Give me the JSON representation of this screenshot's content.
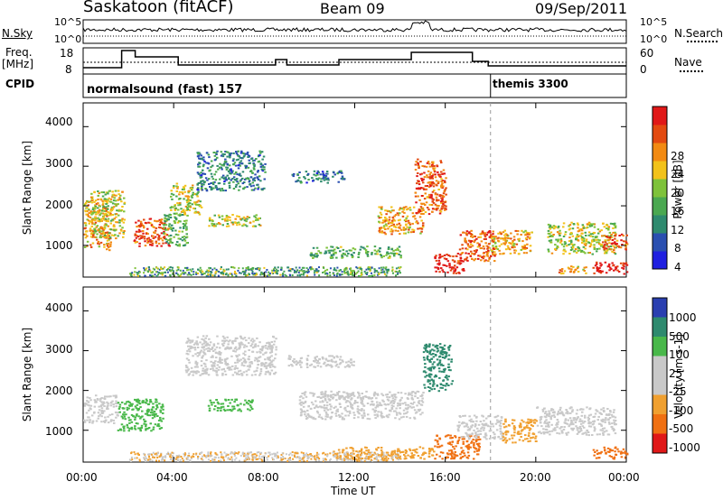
{
  "header": {
    "station": "Saskatoon (fitACF)",
    "beam": "Beam 09",
    "date": "09/Sep/2011"
  },
  "noise_panel": {
    "left_label": "N.Sky",
    "right_label": "N.Search",
    "left_ticks": [
      "10^5",
      "10^0"
    ],
    "right_ticks": [
      "10^5",
      "10^0"
    ]
  },
  "freq_panel": {
    "left_label_1": "Freq.",
    "left_label_2": "[MHz]",
    "right_label": "Nave",
    "left_ticks": [
      "18",
      "8"
    ],
    "right_ticks": [
      "60",
      "0"
    ]
  },
  "cpid_panel": {
    "label": "CPID",
    "modes": [
      {
        "text": "normalsound (fast) 157",
        "start_h": 0
      },
      {
        "text": "themis 3300",
        "start_h": 18
      }
    ]
  },
  "time_axis": {
    "label": "Time UT",
    "ticks": [
      "00:00",
      "04:00",
      "08:00",
      "12:00",
      "16:00",
      "20:00",
      "00:00"
    ]
  },
  "power_panel": {
    "ylabel": "Slant Range [km]",
    "yticks": [
      "4000",
      "3000",
      "2000",
      "1000"
    ],
    "colorbar_label": "Power [dB]",
    "colorbar_ticks": [
      "28",
      "24",
      "20",
      "16",
      "12",
      "8",
      "4"
    ],
    "colors": [
      "#1f1fe0",
      "#2a4fb0",
      "#2e8a6e",
      "#4aa850",
      "#7ec23a",
      "#f2c21a",
      "#f28a12",
      "#e34a10",
      "#e01818"
    ]
  },
  "velocity_panel": {
    "ylabel": "Slant Range [km]",
    "yticks": [
      "4000",
      "3000",
      "2000",
      "1000"
    ],
    "colorbar_label": "Velocity [m s-1]",
    "colorbar_ticks": [
      "1000",
      "500",
      "100",
      "25",
      "-25",
      "-100",
      "-500",
      "-1000"
    ],
    "colors": [
      "#2a3fb0",
      "#2e8a6e",
      "#49b84a",
      "#c9c9c9",
      "#c9c9c9",
      "#f0a030",
      "#f07012",
      "#e01818"
    ]
  },
  "chart_data": [
    {
      "type": "heatmap",
      "title": "Power",
      "xlabel": "Time UT",
      "ylabel": "Slant Range [km]",
      "xlim": [
        0,
        24
      ],
      "ylim": [
        200,
        4600
      ],
      "colorbar": {
        "label": "Power [dB]",
        "ticks": [
          4,
          8,
          12,
          16,
          20,
          24,
          28
        ]
      },
      "regions": [
        {
          "t0": 0.0,
          "t1": 1.2,
          "r0": 900,
          "r1": 2200,
          "level": 20
        },
        {
          "t0": 0.3,
          "t1": 1.8,
          "r0": 1200,
          "r1": 2400,
          "level": 16
        },
        {
          "t0": 2.2,
          "t1": 3.8,
          "r0": 1000,
          "r1": 1700,
          "level": 24
        },
        {
          "t0": 3.5,
          "t1": 4.6,
          "r0": 1000,
          "r1": 1800,
          "level": 12
        },
        {
          "t0": 3.8,
          "t1": 5.2,
          "r0": 1800,
          "r1": 2600,
          "level": 16
        },
        {
          "t0": 5.0,
          "t1": 8.0,
          "r0": 2400,
          "r1": 3400,
          "level": 8
        },
        {
          "t0": 5.5,
          "t1": 7.8,
          "r0": 1500,
          "r1": 1800,
          "level": 16
        },
        {
          "t0": 9.2,
          "t1": 11.5,
          "r0": 2600,
          "r1": 2900,
          "level": 8
        },
        {
          "t0": 10.0,
          "t1": 14.0,
          "r0": 700,
          "r1": 1000,
          "level": 12
        },
        {
          "t0": 13.0,
          "t1": 15.0,
          "r0": 1300,
          "r1": 2000,
          "level": 20
        },
        {
          "t0": 14.6,
          "t1": 16.0,
          "r0": 1800,
          "r1": 3200,
          "level": 24
        },
        {
          "t0": 15.5,
          "t1": 16.8,
          "r0": 300,
          "r1": 800,
          "level": 28
        },
        {
          "t0": 16.5,
          "t1": 18.2,
          "r0": 600,
          "r1": 1400,
          "level": 24
        },
        {
          "t0": 18.0,
          "t1": 19.8,
          "r0": 800,
          "r1": 1400,
          "level": 20
        },
        {
          "t0": 20.5,
          "t1": 23.5,
          "r0": 800,
          "r1": 1600,
          "level": 16
        },
        {
          "t0": 21.0,
          "t1": 22.2,
          "r0": 300,
          "r1": 500,
          "level": 20
        },
        {
          "t0": 22.5,
          "t1": 24.0,
          "r0": 300,
          "r1": 600,
          "level": 28
        },
        {
          "t0": 22.8,
          "t1": 24.0,
          "r0": 900,
          "r1": 1300,
          "level": 24
        }
      ]
    },
    {
      "type": "heatmap",
      "title": "Velocity",
      "xlabel": "Time UT",
      "ylabel": "Slant Range [km]",
      "xlim": [
        0,
        24
      ],
      "ylim": [
        200,
        4600
      ],
      "colorbar": {
        "label": "Velocity [m s-1]",
        "ticks": [
          1000,
          500,
          100,
          25,
          -25,
          -100,
          -500,
          -1000
        ]
      },
      "regions": [
        {
          "t0": 0.0,
          "t1": 1.5,
          "r0": 1200,
          "r1": 1900,
          "level": 0
        },
        {
          "t0": 1.5,
          "t1": 3.5,
          "r0": 1000,
          "r1": 1800,
          "level": 100
        },
        {
          "t0": 4.5,
          "t1": 8.5,
          "r0": 2400,
          "r1": 3400,
          "level": 0
        },
        {
          "t0": 5.5,
          "t1": 7.5,
          "r0": 1500,
          "r1": 1800,
          "level": 100
        },
        {
          "t0": 9.0,
          "t1": 12.0,
          "r0": 2600,
          "r1": 2900,
          "level": 0
        },
        {
          "t0": 9.5,
          "t1": 15.0,
          "r0": 1300,
          "r1": 2000,
          "level": 0
        },
        {
          "t0": 11.0,
          "t1": 15.5,
          "r0": 300,
          "r1": 600,
          "level": -100
        },
        {
          "t0": 15.0,
          "t1": 16.3,
          "r0": 2000,
          "r1": 3200,
          "level": 500
        },
        {
          "t0": 15.5,
          "t1": 17.5,
          "r0": 300,
          "r1": 900,
          "level": -500
        },
        {
          "t0": 16.5,
          "t1": 18.5,
          "r0": 800,
          "r1": 1400,
          "level": 0
        },
        {
          "t0": 18.5,
          "t1": 20.0,
          "r0": 700,
          "r1": 1300,
          "level": -100
        },
        {
          "t0": 20.0,
          "t1": 23.5,
          "r0": 900,
          "r1": 1600,
          "level": 0
        },
        {
          "t0": 22.5,
          "t1": 24.0,
          "r0": 300,
          "r1": 600,
          "level": -500
        }
      ]
    }
  ]
}
